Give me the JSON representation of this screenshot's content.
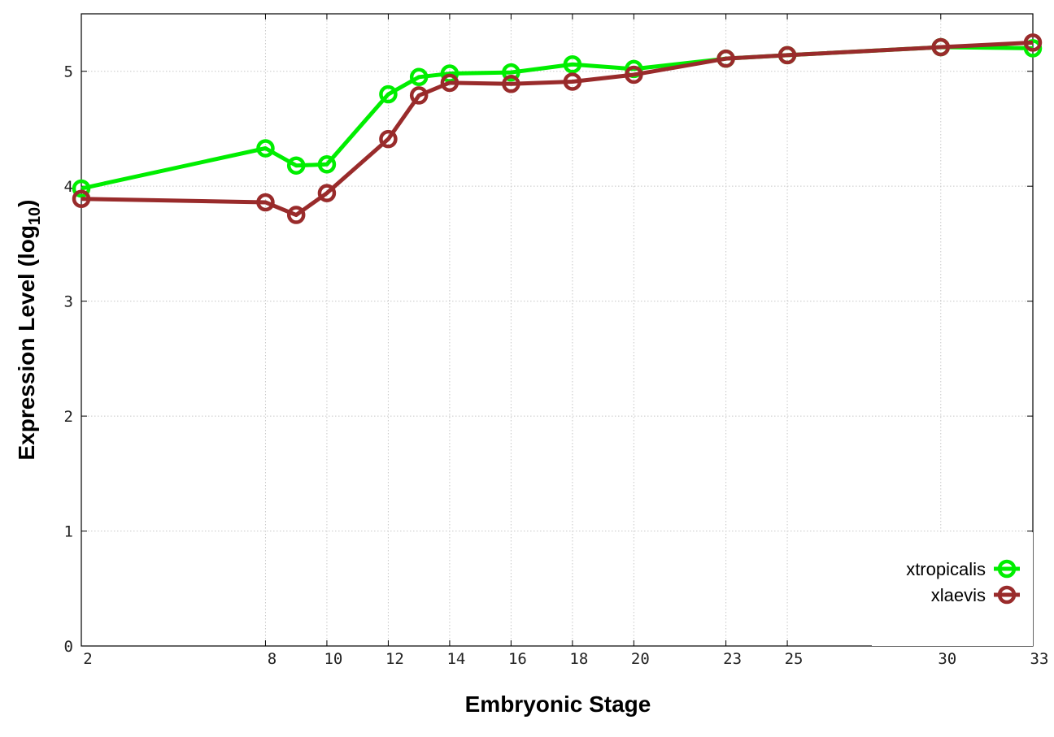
{
  "chart_data": {
    "type": "line",
    "title": "",
    "xlabel": "Embryonic Stage",
    "ylabel_main": "Expression Level (log",
    "ylabel_sub": "10",
    "ylabel_close": ")",
    "x": [
      2,
      8,
      9,
      10,
      12,
      13,
      14,
      16,
      18,
      20,
      23,
      25,
      30,
      33
    ],
    "x_tick_labels": [
      "2",
      "8",
      "10",
      "12",
      "14",
      "16",
      "18",
      "20",
      "23",
      "25",
      "30",
      "33"
    ],
    "x_tick_values": [
      2,
      8,
      10,
      12,
      14,
      16,
      18,
      20,
      23,
      25,
      30,
      33
    ],
    "y_ticks": [
      0,
      1,
      2,
      3,
      4,
      5
    ],
    "y_tick_labels": [
      "0",
      "1",
      "2",
      "3",
      "4",
      "5"
    ],
    "xlim": [
      2,
      33
    ],
    "ylim": [
      0,
      5.5
    ],
    "grid": true,
    "legend_position": "bottom-right",
    "series": [
      {
        "name": "xtropicalis",
        "color": "#00ee00",
        "values": [
          3.98,
          4.33,
          4.18,
          4.19,
          4.8,
          4.95,
          4.98,
          4.99,
          5.06,
          5.02,
          5.11,
          5.14,
          5.21,
          5.2
        ]
      },
      {
        "name": "xlaevis",
        "color": "#992b2b",
        "values": [
          3.89,
          3.86,
          3.75,
          3.94,
          4.41,
          4.79,
          4.9,
          4.89,
          4.91,
          4.97,
          5.11,
          5.14,
          5.21,
          5.25
        ]
      }
    ]
  }
}
